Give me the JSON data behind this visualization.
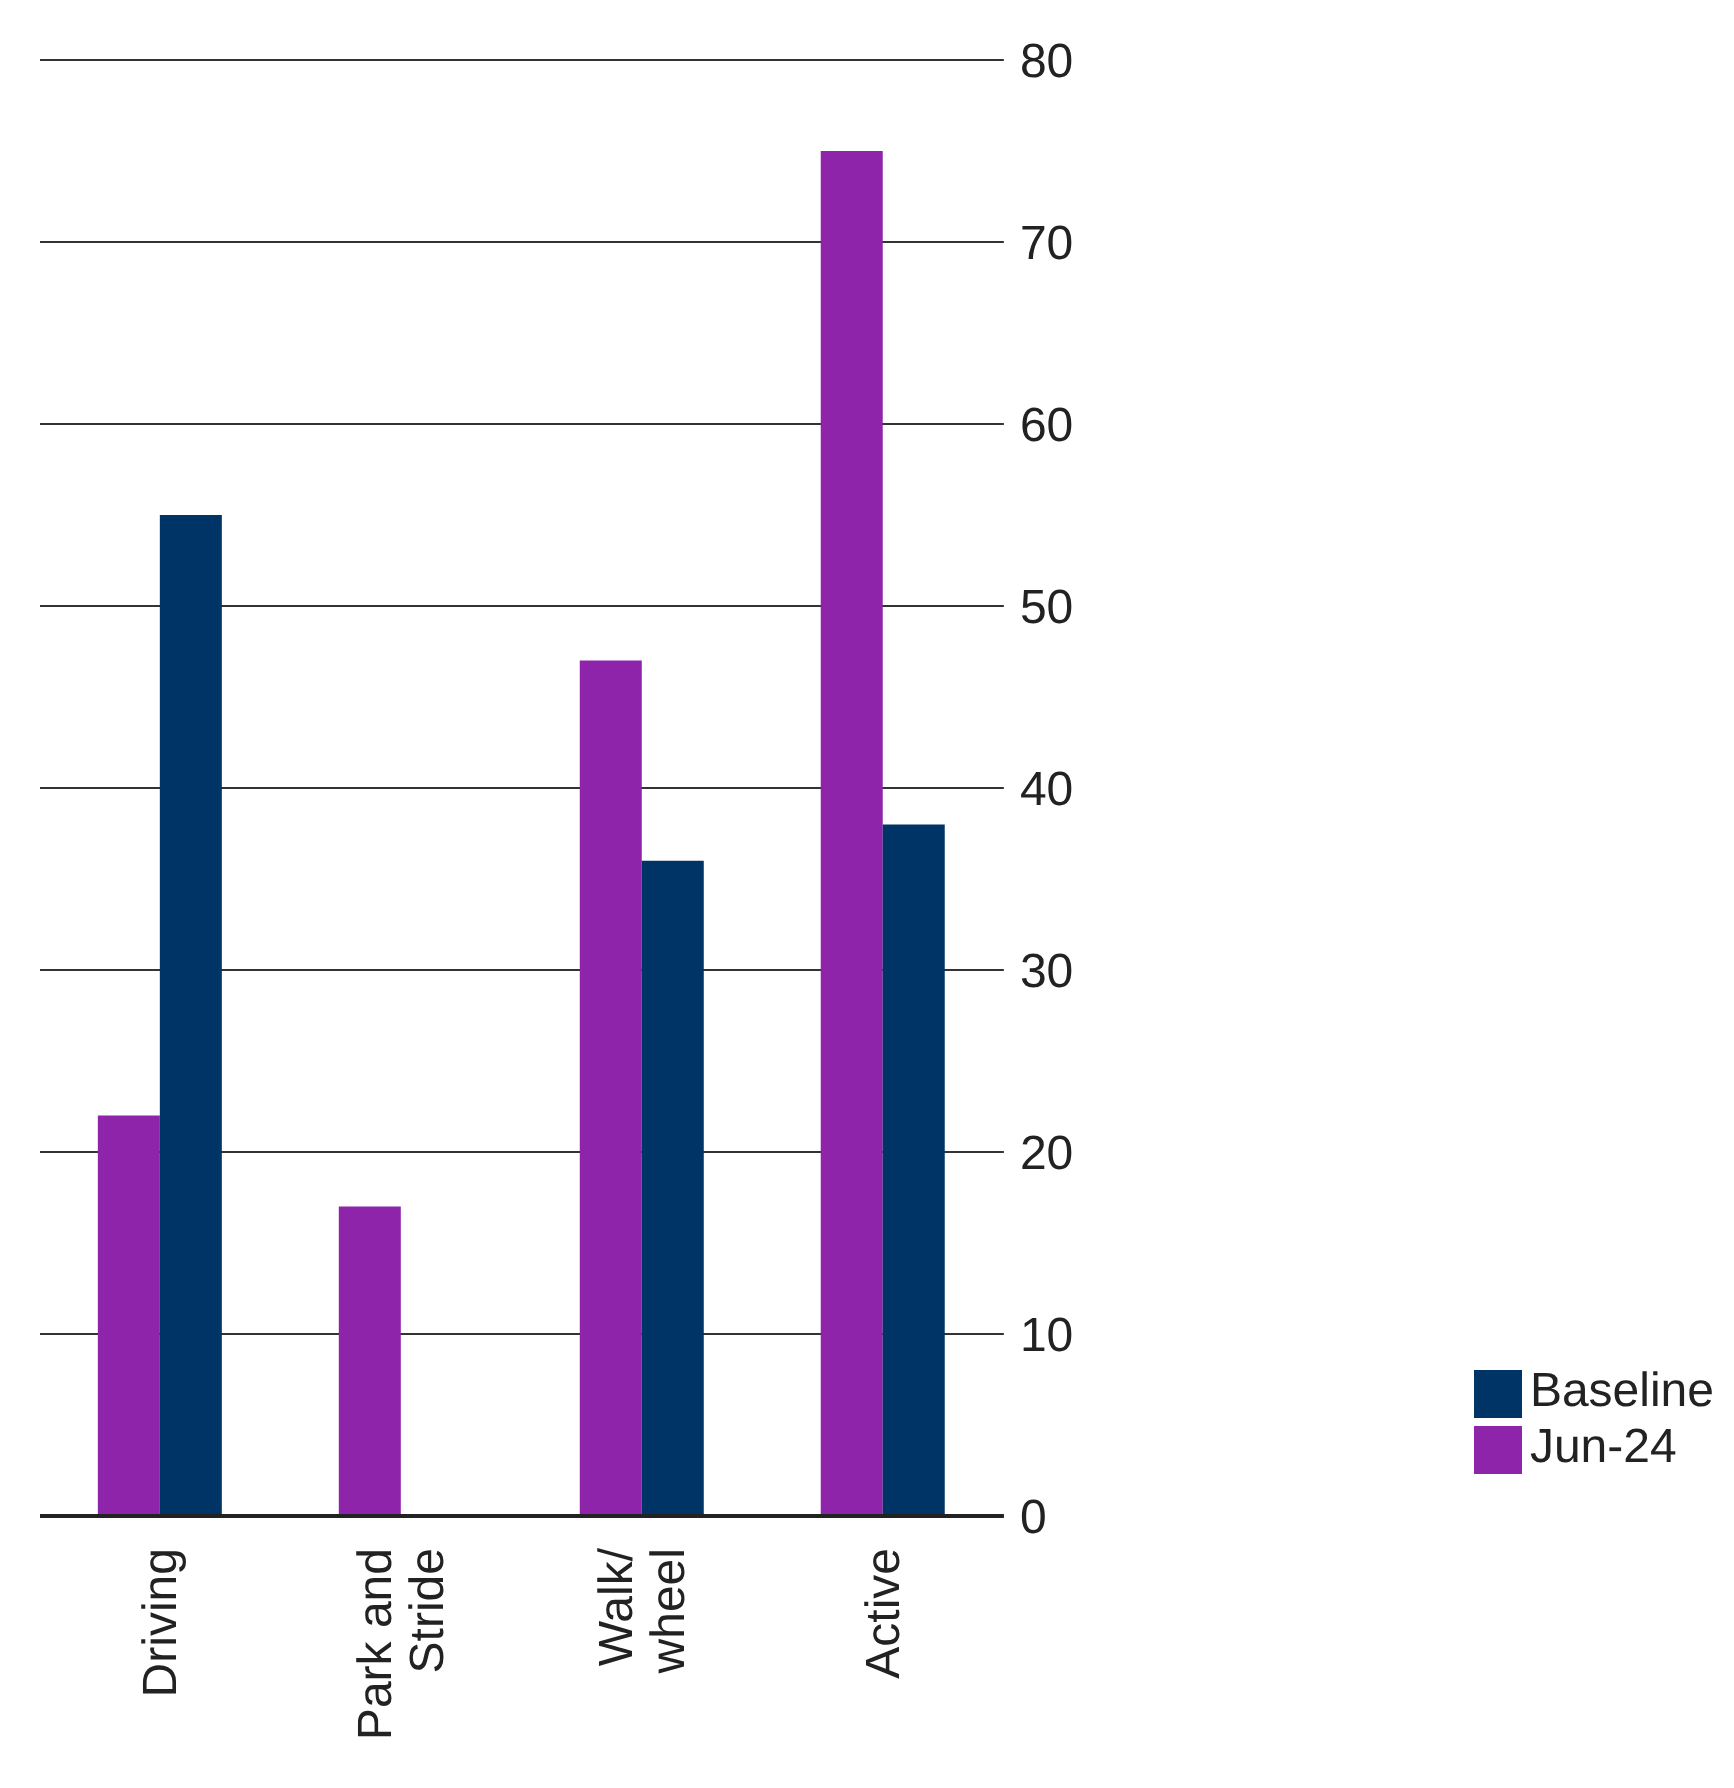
{
  "chart_data": {
    "type": "bar",
    "categories": [
      "Driving",
      "Park and Stride",
      "Walk/ wheel",
      "Active"
    ],
    "series": [
      {
        "name": "Jun-24",
        "color": "#8e24aa",
        "values": [
          22,
          17,
          47,
          75
        ]
      },
      {
        "name": "Baseline",
        "color": "#003366",
        "values": [
          55,
          null,
          36,
          38
        ]
      }
    ],
    "ylim": [
      0,
      80
    ],
    "yticks": [
      0,
      10,
      20,
      30,
      40,
      50,
      60,
      70,
      80
    ],
    "grid": "y",
    "legend": "right"
  }
}
